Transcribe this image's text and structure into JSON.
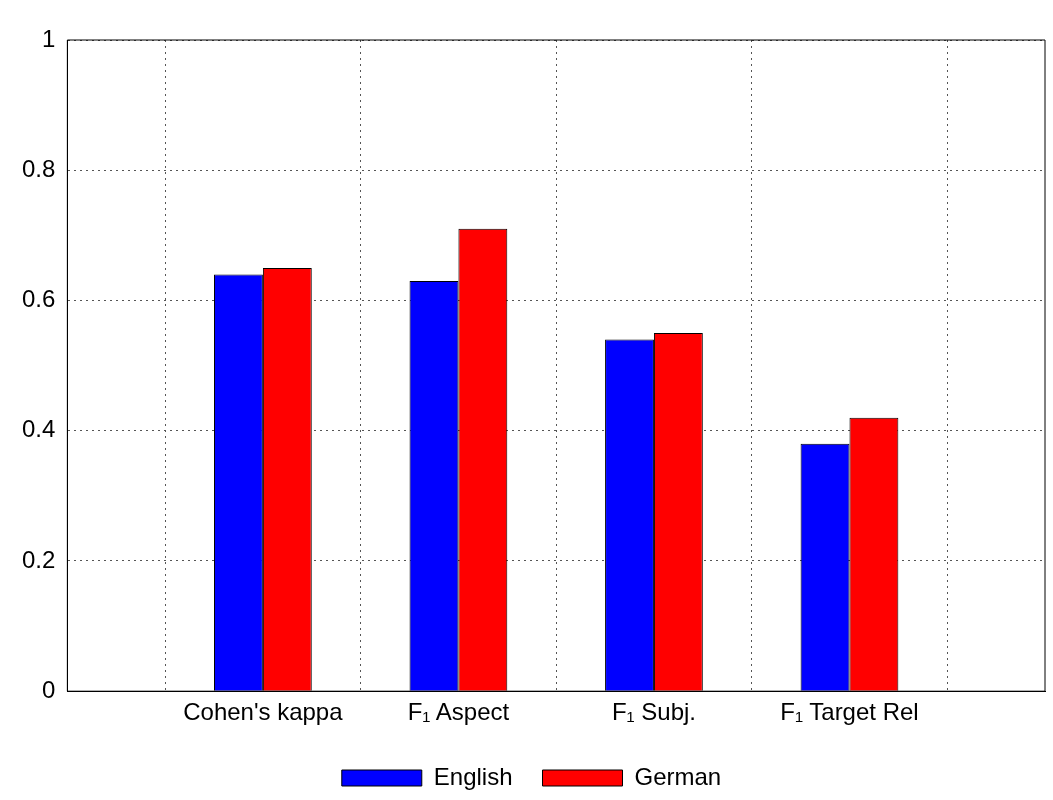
{
  "chart_data": {
    "type": "bar",
    "categories": [
      null,
      "Cohen's kappa",
      "F₁ Aspect",
      "F₁ Subj.",
      "F₁ Target Rel",
      null
    ],
    "series": [
      {
        "name": "English",
        "color": "#0000ff",
        "values": [
          null,
          0.64,
          0.63,
          0.54,
          0.38,
          null
        ]
      },
      {
        "name": "German",
        "color": "#ff0000",
        "values": [
          null,
          0.65,
          0.71,
          0.55,
          0.42,
          null
        ]
      }
    ],
    "ylim": [
      0,
      1
    ],
    "yticks": [
      0,
      {
        "value": 0.2,
        "label": "0.2"
      },
      {
        "value": 0.4,
        "label": "0.4"
      },
      {
        "value": 0.6,
        "label": "0.6"
      },
      {
        "value": 0.8,
        "label": "0.8"
      },
      1
    ],
    "grid": true,
    "legend": "bottom"
  }
}
